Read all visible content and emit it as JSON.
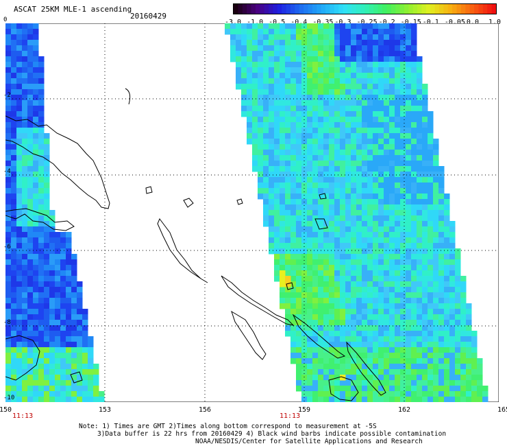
{
  "title": "ASCAT 25KM MLE-1 ascending",
  "date": "20160429",
  "colorbar": {
    "labels": [
      "-3.0",
      "-1.0",
      "-0.5",
      "-0.4",
      "-0.35",
      "-0.3",
      "-0.25",
      "-0.2",
      "-0.15",
      "-0.1",
      "-0.05",
      "0.0",
      "1.0"
    ],
    "colors": [
      "#1a0010",
      "#4a0080",
      "#1e1ee0",
      "#1e6cf0",
      "#20a8f8",
      "#30e0f8",
      "#30f0b8",
      "#40f060",
      "#90f030",
      "#e0f020",
      "#f8b010",
      "#f86010",
      "#f01010"
    ]
  },
  "axes": {
    "x_ticks": [
      "150",
      "153",
      "156",
      "159",
      "162",
      "165"
    ],
    "y_ticks": [
      "0",
      "-2",
      "-4",
      "-6",
      "-8",
      "-10"
    ]
  },
  "times": [
    "11:13",
    "11:13"
  ],
  "notes": [
    "Note: 1) Times are GMT 2)Times along bottom correspond to measurement at -5S",
    "3)Data buffer is 22 hrs from 20160429 4) Black wind barbs indicate possible contamination",
    "NOAA/NESDIS/Center for Satellite Applications and Research"
  ]
}
